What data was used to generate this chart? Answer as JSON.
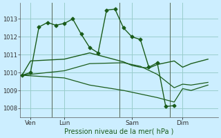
{
  "background_color": "#cceeff",
  "grid_color": "#99cccc",
  "line_color": "#1a5c1a",
  "title": "Pression niveau de la mer( hPa )",
  "ylim": [
    1007.5,
    1013.9
  ],
  "yticks": [
    1008,
    1009,
    1010,
    1011,
    1012,
    1013
  ],
  "xtick_labels": [
    "Ven",
    "Lun",
    "Sam",
    "Dim"
  ],
  "xtick_positions": [
    1,
    5,
    13,
    19
  ],
  "day_vlines": [
    3.5,
    11.5,
    17.5
  ],
  "xlim": [
    -0.2,
    23.2
  ],
  "series": {
    "line1": {
      "x": [
        0,
        1,
        2,
        3,
        4,
        5,
        6,
        7,
        8,
        9,
        10,
        11,
        12,
        13,
        14,
        15,
        16,
        17,
        18,
        19
      ],
      "y": [
        1009.85,
        1010.0,
        1012.55,
        1012.8,
        1012.65,
        1012.75,
        1013.0,
        1012.15,
        1011.4,
        1011.1,
        1013.5,
        1013.55,
        1012.5,
        1012.0,
        1011.85,
        1010.3,
        1010.55,
        1008.1,
        1008.15,
        null
      ]
    },
    "line2": {
      "x": [
        0,
        1,
        5,
        8,
        12,
        13,
        14,
        15,
        16,
        17,
        18,
        19,
        20,
        22
      ],
      "y": [
        1009.85,
        1010.65,
        1010.75,
        1011.1,
        1010.6,
        1010.4,
        1010.3,
        1010.25,
        1010.45,
        1010.55,
        1010.65,
        1010.3,
        1010.5,
        1010.75
      ]
    },
    "line3": {
      "x": [
        0,
        5,
        8,
        12,
        14,
        16,
        18,
        19,
        20,
        22
      ],
      "y": [
        1009.85,
        1010.1,
        1010.5,
        1010.55,
        1010.35,
        1009.9,
        1009.15,
        1009.35,
        1009.3,
        1009.45
      ]
    },
    "line4": {
      "x": [
        0,
        5,
        8,
        12,
        16,
        18,
        19,
        20,
        22
      ],
      "y": [
        1009.85,
        1009.7,
        1009.3,
        1009.0,
        1008.6,
        1008.35,
        1009.1,
        1009.0,
        1009.3
      ]
    }
  }
}
